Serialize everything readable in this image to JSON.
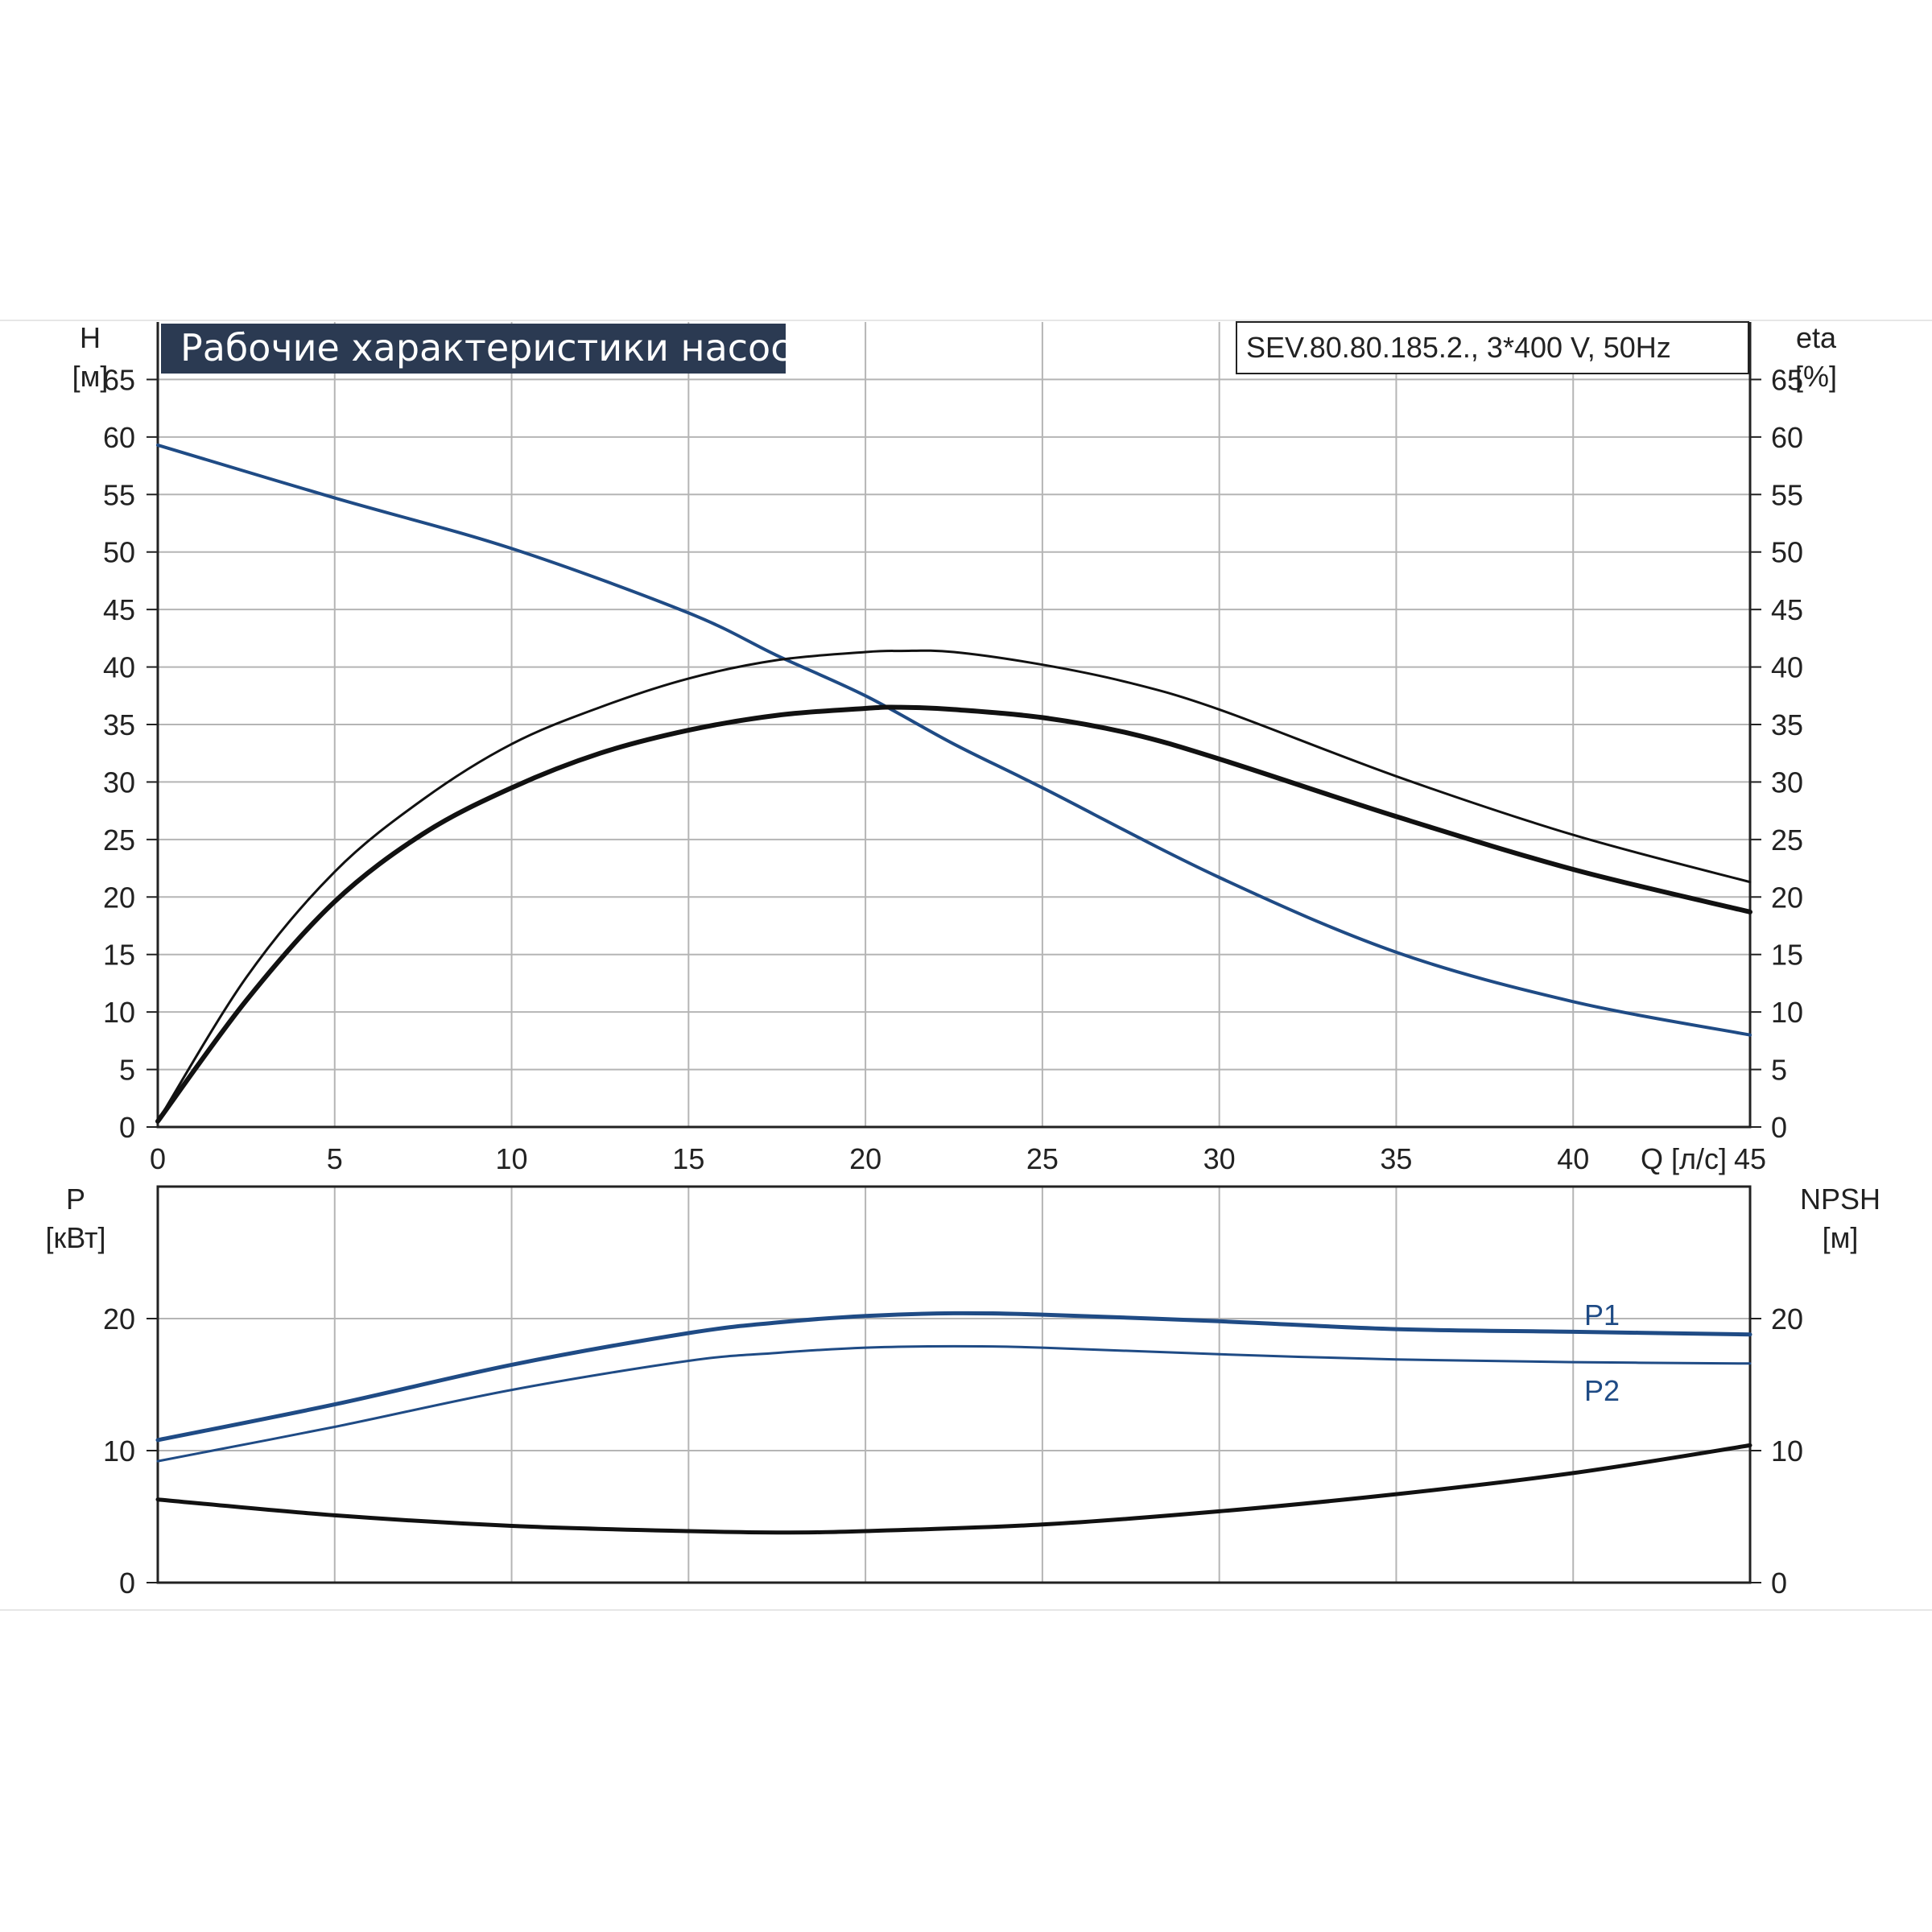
{
  "chart_data": [
    {
      "id": "performance",
      "type": "line",
      "title": "Рабочие характеристики насоса",
      "model": "SEV.80.80.185.2., 3*400 V, 50Hz",
      "ylabel_left": "H",
      "ylabel_left_unit": "[м]",
      "ylabel_right": "eta",
      "ylabel_right_unit": "[%]",
      "xlabel": "Q [л/с]",
      "xlim": [
        0,
        45
      ],
      "ylim": [
        0,
        70
      ],
      "xticks": [
        "0",
        "5",
        "10",
        "15",
        "20",
        "25",
        "30",
        "35",
        "40",
        "45"
      ],
      "yticks": [
        "0",
        "5",
        "10",
        "15",
        "20",
        "25",
        "30",
        "35",
        "40",
        "45",
        "50",
        "55",
        "60",
        "65"
      ],
      "grid": true,
      "colors": {
        "blue": "#1f4b85",
        "black": "#111111"
      },
      "series": [
        {
          "axis": "left",
          "color": "#1f4b85",
          "x": [
            0,
            5,
            10,
            15,
            17.5,
            20,
            22.5,
            25,
            30,
            35,
            40,
            45
          ],
          "y": [
            59.3,
            54.7,
            50.3,
            44.7,
            41.0,
            37.5,
            33.3,
            29.5,
            21.7,
            15.2,
            10.9,
            8.0
          ]
        },
        {
          "axis": "right",
          "color": "#111111",
          "x": [
            0,
            2.5,
            5,
            7.5,
            10,
            12.5,
            15,
            17.5,
            20,
            21,
            22.5,
            25,
            27.5,
            30,
            35,
            40,
            45
          ],
          "y": [
            0.5,
            13,
            22.2,
            28.5,
            33.3,
            36.5,
            39.0,
            40.6,
            41.3,
            41.4,
            41.3,
            40.2,
            38.6,
            36.3,
            30.5,
            25.4,
            21.3
          ]
        },
        {
          "axis": "right",
          "color": "#111111",
          "x": [
            0,
            2.5,
            5,
            7.5,
            10,
            12.5,
            15,
            17.5,
            20,
            21,
            22.5,
            25,
            27.5,
            30,
            35,
            40,
            45
          ],
          "y": [
            0.5,
            11,
            19.6,
            25.5,
            29.5,
            32.5,
            34.5,
            35.8,
            36.4,
            36.5,
            36.3,
            35.6,
            34.2,
            32.0,
            27.0,
            22.4,
            18.7
          ]
        }
      ]
    },
    {
      "id": "power",
      "type": "line",
      "ylabel_left": "P",
      "ylabel_left_unit": "[кВт]",
      "ylabel_right": "NPSH",
      "ylabel_right_unit": "[м]",
      "xlim": [
        0,
        45
      ],
      "ylim": [
        0,
        30
      ],
      "yticks": [
        "0",
        "10",
        "20"
      ],
      "grid": true,
      "series": [
        {
          "name": "P1",
          "axis": "left",
          "color": "#1f4b85",
          "x": [
            0,
            5,
            10,
            15,
            17.5,
            20,
            22.5,
            25,
            30,
            35,
            40,
            45
          ],
          "y": [
            10.8,
            13.5,
            16.5,
            18.9,
            19.7,
            20.2,
            20.4,
            20.3,
            19.8,
            19.2,
            19.0,
            18.8
          ]
        },
        {
          "name": "P2",
          "axis": "left",
          "color": "#1f4b85",
          "x": [
            0,
            5,
            10,
            15,
            17.5,
            20,
            22.5,
            25,
            30,
            35,
            40,
            45
          ],
          "y": [
            9.2,
            11.8,
            14.6,
            16.8,
            17.4,
            17.8,
            17.9,
            17.8,
            17.3,
            16.9,
            16.7,
            16.6
          ]
        },
        {
          "axis": "right",
          "color": "#111111",
          "x": [
            0,
            5,
            10,
            15,
            17.5,
            20,
            25,
            30,
            35,
            40,
            45
          ],
          "y": [
            6.3,
            5.1,
            4.3,
            3.9,
            3.8,
            3.9,
            4.4,
            5.4,
            6.7,
            8.3,
            10.4
          ]
        }
      ]
    }
  ]
}
